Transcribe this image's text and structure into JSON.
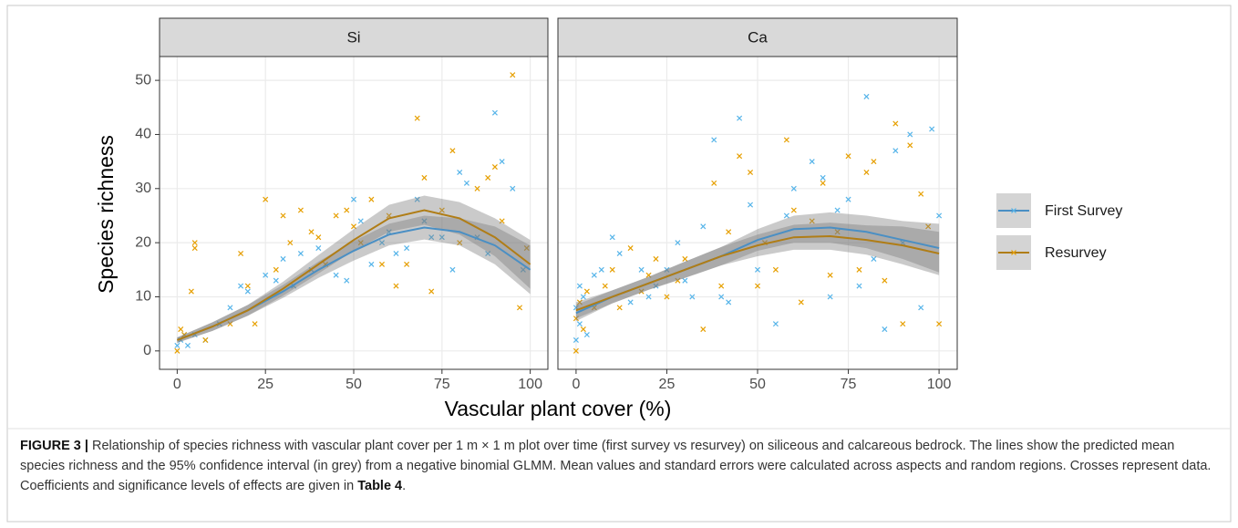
{
  "chart_data": [
    {
      "type": "scatter",
      "title": "Si",
      "x_label": "Vascular plant cover (%)",
      "y_label": "Species richness",
      "xlim": [
        -5,
        105
      ],
      "ylim": [
        -3.4,
        54.4
      ],
      "xticks": [
        0,
        25,
        50,
        75,
        100
      ],
      "yticks": [
        0,
        10,
        20,
        30,
        40,
        50
      ],
      "grid": true,
      "series": [
        {
          "name": "First Survey",
          "color": "#56b4e9",
          "line_color": "#4a8fc4",
          "x": [
            0,
            1,
            2,
            3,
            5,
            8,
            12,
            15,
            18,
            20,
            25,
            28,
            30,
            33,
            35,
            38,
            40,
            45,
            48,
            50,
            52,
            55,
            58,
            60,
            62,
            65,
            68,
            70,
            72,
            75,
            78,
            80,
            82,
            85,
            88,
            90,
            92,
            95,
            98
          ],
          "values": [
            1,
            2,
            3,
            1,
            3,
            2,
            5,
            8,
            12,
            11,
            14,
            13,
            17,
            12,
            18,
            15,
            19,
            14,
            13,
            28,
            24,
            16,
            20,
            22,
            18,
            19,
            28,
            24,
            21,
            21,
            15,
            33,
            31,
            21,
            18,
            44,
            35,
            30,
            15
          ],
          "fit_x": [
            0,
            10,
            20,
            30,
            40,
            50,
            60,
            70,
            80,
            90,
            100
          ],
          "fit_values": [
            2,
            4.5,
            7.5,
            11,
            15,
            18.5,
            21.5,
            22.8,
            22,
            19.5,
            15
          ],
          "fit_lower": [
            1.5,
            3.7,
            6.5,
            9.8,
            13.5,
            16.7,
            19.5,
            20.6,
            19.5,
            16,
            10.5
          ],
          "fit_upper": [
            2.5,
            5.3,
            8.5,
            12.2,
            16.5,
            20.3,
            23.5,
            25,
            24.5,
            23,
            19.5
          ]
        },
        {
          "name": "Resurvey",
          "color": "#e69f00",
          "line_color": "#b07d16",
          "x": [
            0,
            1,
            2,
            4,
            5,
            5,
            8,
            15,
            18,
            20,
            22,
            25,
            28,
            30,
            32,
            35,
            38,
            40,
            42,
            45,
            48,
            50,
            52,
            55,
            58,
            60,
            62,
            65,
            68,
            70,
            72,
            75,
            78,
            80,
            85,
            88,
            90,
            92,
            95,
            97,
            99
          ],
          "values": [
            0,
            4,
            3,
            11,
            20,
            19,
            2,
            5,
            18,
            12,
            5,
            28,
            15,
            25,
            20,
            26,
            22,
            21,
            16,
            25,
            26,
            23,
            20,
            28,
            16,
            25,
            12,
            16,
            43,
            32,
            11,
            26,
            37,
            20,
            30,
            32,
            34,
            24,
            51,
            8,
            19
          ],
          "fit_x": [
            0,
            10,
            20,
            30,
            40,
            50,
            60,
            70,
            80,
            90,
            100
          ],
          "fit_values": [
            2,
            4.5,
            7.5,
            11.5,
            16,
            20.5,
            24.5,
            26,
            24.5,
            21,
            16
          ],
          "fit_lower": [
            1.5,
            3.7,
            6.5,
            10.2,
            14.3,
            18.5,
            22,
            23.3,
            21.5,
            17.5,
            11.5
          ],
          "fit_upper": [
            2.5,
            5.3,
            8.5,
            12.8,
            17.7,
            22.5,
            27,
            28.7,
            27.5,
            24.5,
            20.5
          ]
        }
      ]
    },
    {
      "type": "scatter",
      "title": "Ca",
      "xlim": [
        -5,
        105
      ],
      "ylim": [
        -3.4,
        54.4
      ],
      "xticks": [
        0,
        25,
        50,
        75,
        100
      ],
      "yticks": [
        0,
        10,
        20,
        30,
        40,
        50
      ],
      "grid": true,
      "series": [
        {
          "name": "First Survey",
          "color": "#56b4e9",
          "line_color": "#4a8fc4",
          "x": [
            0,
            0,
            1,
            1,
            2,
            3,
            5,
            7,
            10,
            12,
            15,
            18,
            20,
            22,
            25,
            28,
            30,
            32,
            35,
            38,
            40,
            42,
            45,
            48,
            50,
            55,
            58,
            60,
            65,
            68,
            70,
            72,
            75,
            78,
            80,
            82,
            85,
            88,
            90,
            92,
            95,
            98,
            100
          ],
          "values": [
            2,
            8,
            12,
            5,
            10,
            3,
            14,
            15,
            21,
            18,
            9,
            15,
            10,
            12,
            15,
            20,
            13,
            10,
            23,
            39,
            10,
            9,
            43,
            27,
            15,
            5,
            25,
            30,
            35,
            32,
            10,
            26,
            28,
            12,
            47,
            17,
            4,
            37,
            20,
            40,
            8,
            41,
            25
          ],
          "fit_x": [
            0,
            10,
            20,
            30,
            40,
            50,
            60,
            70,
            80,
            90,
            100
          ],
          "fit_values": [
            7,
            10,
            12.5,
            15,
            17.5,
            20.5,
            22.5,
            22.8,
            22,
            20.5,
            19
          ],
          "fit_lower": [
            5.5,
            8.8,
            11.3,
            13.5,
            15.8,
            18.5,
            20,
            20,
            19,
            17,
            14.5
          ],
          "fit_upper": [
            8.5,
            11.2,
            13.7,
            16.5,
            19.2,
            22.5,
            25,
            25.6,
            25,
            24,
            23.5
          ]
        },
        {
          "name": "Resurvey",
          "color": "#e69f00",
          "line_color": "#b07d16",
          "x": [
            0,
            0,
            1,
            2,
            3,
            5,
            8,
            10,
            12,
            15,
            18,
            20,
            22,
            25,
            28,
            30,
            35,
            38,
            40,
            42,
            45,
            48,
            50,
            52,
            55,
            58,
            60,
            62,
            65,
            68,
            70,
            72,
            75,
            78,
            80,
            82,
            85,
            88,
            90,
            92,
            95,
            97,
            100
          ],
          "values": [
            0,
            6,
            9,
            4,
            11,
            8,
            12,
            15,
            8,
            19,
            11,
            14,
            17,
            10,
            13,
            17,
            4,
            31,
            12,
            22,
            36,
            33,
            12,
            20,
            15,
            39,
            26,
            9,
            24,
            31,
            14,
            22,
            36,
            15,
            33,
            35,
            13,
            42,
            5,
            38,
            29,
            23,
            5
          ],
          "fit_x": [
            0,
            10,
            20,
            30,
            40,
            50,
            60,
            70,
            80,
            90,
            100
          ],
          "fit_values": [
            7.5,
            10,
            12.5,
            15,
            17.5,
            19.5,
            21,
            21.2,
            20.5,
            19.5,
            18
          ],
          "fit_lower": [
            6,
            8.8,
            11.3,
            13.5,
            15.8,
            17.5,
            18.7,
            18.7,
            17.8,
            16,
            14
          ],
          "fit_upper": [
            9,
            11.2,
            13.7,
            16.5,
            19.2,
            21.5,
            23.3,
            23.7,
            23.2,
            23,
            22
          ]
        }
      ]
    }
  ],
  "caption": {
    "label": "FIGURE 3 |",
    "text": " Relationship of species richness with vascular plant cover per 1 m × 1 m plot over time (first survey vs resurvey) on siliceous and calcareous bedrock. The lines show the predicted mean species richness and the 95% confidence interval (in grey) from a negative binomial GLMM. Mean values and standard errors were calculated across aspects and random regions. Crosses represent data. Coefficients and significance levels of effects are given in ",
    "ref": "Table 4",
    "end": "."
  }
}
